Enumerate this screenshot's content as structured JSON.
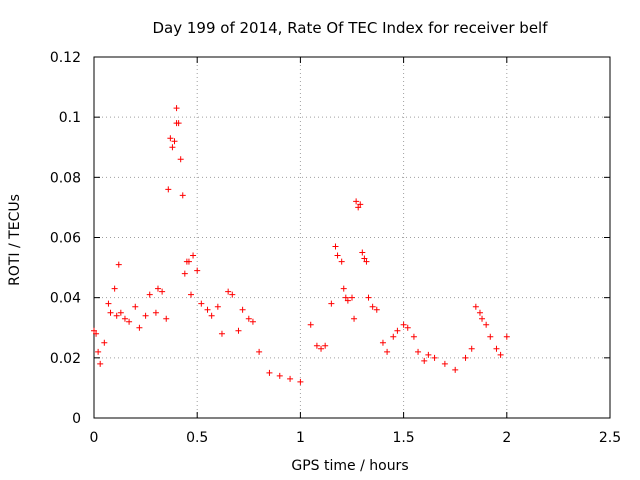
{
  "chart_data": {
    "type": "scatter",
    "title": "Day 199 of 2014, Rate Of TEC Index for receiver belf",
    "xlabel": "GPS time / hours",
    "ylabel": "ROTI / TECUs",
    "xlim": [
      0,
      2.5
    ],
    "ylim": [
      0,
      0.12
    ],
    "xticks": [
      0,
      0.5,
      1,
      1.5,
      2,
      2.5
    ],
    "xtick_labels": [
      "0",
      "0.5",
      "1",
      "1.5",
      "2",
      "2.5"
    ],
    "yticks": [
      0,
      0.02,
      0.04,
      0.06,
      0.08,
      0.1,
      0.12
    ],
    "ytick_labels": [
      "0",
      "0.02",
      "0.04",
      "0.06",
      "0.08",
      "0.1",
      "0.12"
    ],
    "grid": true,
    "marker": "+",
    "color": "#ff0000",
    "series": [
      {
        "name": "ROTI",
        "x": [
          0.0,
          0.01,
          0.02,
          0.03,
          0.05,
          0.07,
          0.08,
          0.1,
          0.11,
          0.12,
          0.13,
          0.15,
          0.17,
          0.2,
          0.22,
          0.25,
          0.27,
          0.3,
          0.31,
          0.33,
          0.35,
          0.36,
          0.37,
          0.38,
          0.39,
          0.4,
          0.4,
          0.41,
          0.42,
          0.43,
          0.44,
          0.45,
          0.46,
          0.47,
          0.48,
          0.5,
          0.52,
          0.55,
          0.57,
          0.6,
          0.62,
          0.65,
          0.67,
          0.7,
          0.72,
          0.75,
          0.77,
          0.8,
          0.85,
          0.9,
          0.95,
          1.0,
          1.05,
          1.08,
          1.1,
          1.12,
          1.15,
          1.17,
          1.18,
          1.2,
          1.21,
          1.22,
          1.23,
          1.25,
          1.26,
          1.27,
          1.28,
          1.29,
          1.3,
          1.31,
          1.32,
          1.33,
          1.35,
          1.37,
          1.4,
          1.42,
          1.45,
          1.47,
          1.5,
          1.52,
          1.55,
          1.57,
          1.6,
          1.62,
          1.65,
          1.7,
          1.75,
          1.8,
          1.83,
          1.85,
          1.87,
          1.88,
          1.9,
          1.92,
          1.95,
          1.97,
          2.0
        ],
        "y": [
          0.029,
          0.028,
          0.022,
          0.018,
          0.025,
          0.038,
          0.035,
          0.043,
          0.034,
          0.051,
          0.035,
          0.033,
          0.032,
          0.037,
          0.03,
          0.034,
          0.041,
          0.035,
          0.043,
          0.042,
          0.033,
          0.076,
          0.093,
          0.09,
          0.092,
          0.103,
          0.098,
          0.098,
          0.086,
          0.074,
          0.048,
          0.052,
          0.052,
          0.041,
          0.054,
          0.049,
          0.038,
          0.036,
          0.034,
          0.037,
          0.028,
          0.042,
          0.041,
          0.029,
          0.036,
          0.033,
          0.032,
          0.022,
          0.015,
          0.014,
          0.013,
          0.012,
          0.031,
          0.024,
          0.023,
          0.024,
          0.038,
          0.057,
          0.054,
          0.052,
          0.043,
          0.04,
          0.039,
          0.04,
          0.033,
          0.072,
          0.07,
          0.071,
          0.055,
          0.053,
          0.052,
          0.04,
          0.037,
          0.036,
          0.025,
          0.022,
          0.027,
          0.029,
          0.031,
          0.03,
          0.027,
          0.022,
          0.019,
          0.021,
          0.02,
          0.018,
          0.016,
          0.02,
          0.023,
          0.037,
          0.035,
          0.033,
          0.031,
          0.027,
          0.023,
          0.021,
          0.027
        ]
      }
    ]
  }
}
